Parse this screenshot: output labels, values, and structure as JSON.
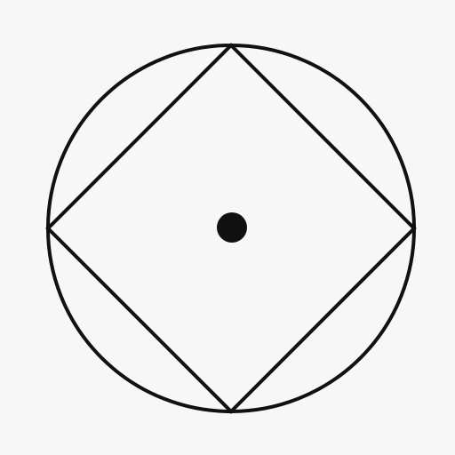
{
  "figure": {
    "shapes": [
      {
        "kind": "circle",
        "name": "outer-circle"
      },
      {
        "kind": "square-inscribed-rotated-45",
        "name": "inscribed-diamond"
      },
      {
        "kind": "point",
        "name": "center-dot"
      }
    ],
    "colors": {
      "background": "#f7f7f7",
      "stroke": "#111111",
      "fill_dot": "#111111"
    }
  }
}
